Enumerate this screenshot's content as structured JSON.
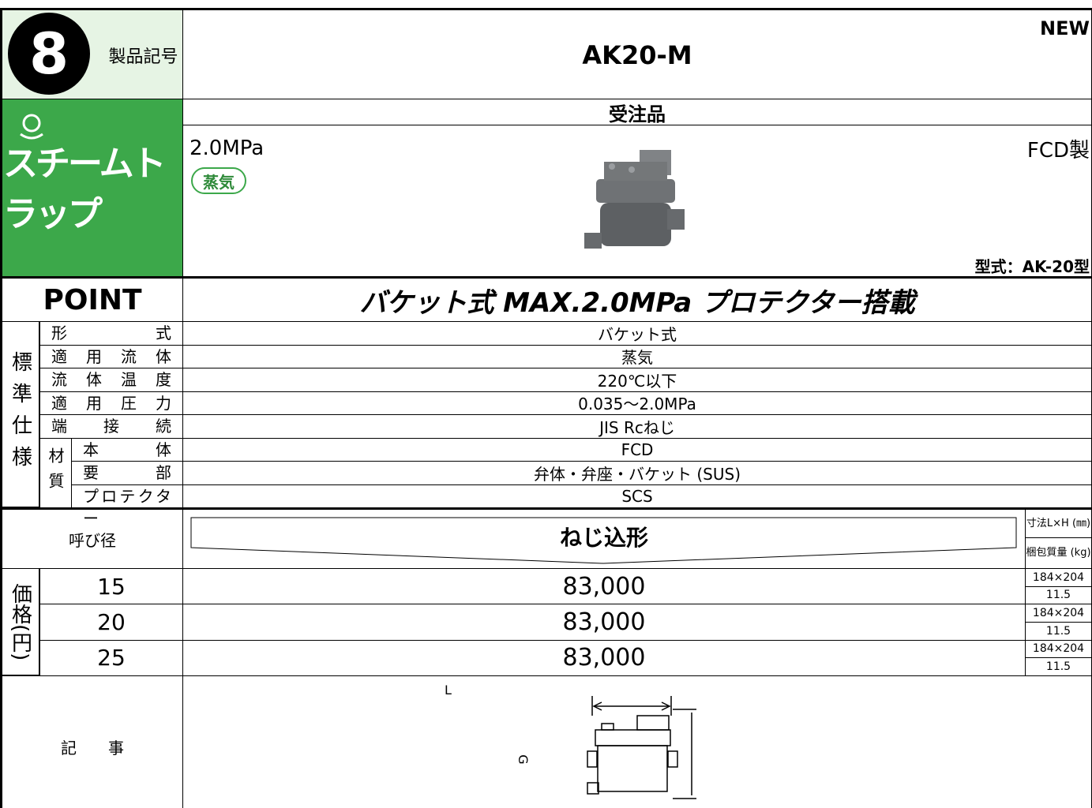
{
  "header": {
    "badge": "8",
    "label": "製品記号",
    "product": "AK20-M",
    "badge_new": "NEW"
  },
  "category": "スチームトラップ",
  "product_info": {
    "order_type": "受注品",
    "pressure": "2.0MPa",
    "fluid_tag": "蒸気",
    "material": "FCD製",
    "model": "型式：AK-20型"
  },
  "point": {
    "label": "POINT",
    "text": "バケット式 MAX.2.0MPa プロテクター搭載"
  },
  "specs": {
    "label": "標準仕様",
    "rows": [
      {
        "label": "形式",
        "value": "バケット式"
      },
      {
        "label": "適用流体",
        "value": "蒸気"
      },
      {
        "label": "流体温度",
        "value": "220℃以下"
      },
      {
        "label": "適用圧力",
        "value": "0.035～2.0MPa"
      },
      {
        "label": "端接続",
        "value": "JIS Rcねじ"
      }
    ],
    "material": {
      "label": "材質",
      "rows": [
        {
          "label": "本体",
          "value": "FCD"
        },
        {
          "label": "要部",
          "value": "弁体・弁座・バケット (SUS)"
        },
        {
          "label": "プロテクター",
          "value": "SCS"
        }
      ]
    }
  },
  "price": {
    "label": "価格(円)",
    "header": {
      "size": "呼び径",
      "type": "ねじ込形",
      "dim": "寸法L×H (㎜)",
      "weight": "梱包質量 (kg)"
    },
    "rows": [
      {
        "size": "15",
        "price": "83,000",
        "dim": "184×204",
        "weight": "11.5"
      },
      {
        "size": "20",
        "price": "83,000",
        "dim": "184×204",
        "weight": "11.5"
      },
      {
        "size": "25",
        "price": "83,000",
        "dim": "184×204",
        "weight": "11.5"
      }
    ]
  },
  "notes": {
    "label": "記事",
    "diagram_labels": [
      "L",
      "G"
    ]
  }
}
